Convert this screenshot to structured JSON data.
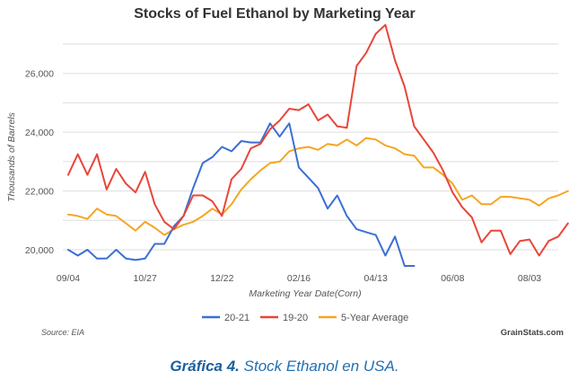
{
  "chart_data": {
    "type": "line",
    "title": "Stocks of Fuel Ethanol by Marketing Year",
    "xlabel": "Marketing Year Date(Corn)",
    "ylabel": "Thousands of Barrels",
    "ylim": [
      19300,
      27900
    ],
    "yticks": [
      20000,
      22000,
      24000,
      26000
    ],
    "ytick_labels": [
      "20,000",
      "22,000",
      "24,000",
      "26,000"
    ],
    "grid_values": [
      20000,
      21000,
      22000,
      23000,
      24000,
      25000,
      26000,
      27000
    ],
    "x_week_count": 53,
    "xticks": [
      {
        "week": 0,
        "label": "09/04"
      },
      {
        "week": 8,
        "label": "10/27"
      },
      {
        "week": 16,
        "label": "12/22"
      },
      {
        "week": 24,
        "label": "02/16"
      },
      {
        "week": 32,
        "label": "04/13"
      },
      {
        "week": 40,
        "label": "06/08"
      },
      {
        "week": 48,
        "label": "08/03"
      }
    ],
    "grid": true,
    "legend_position": "bottom",
    "series": [
      {
        "name": "20-21",
        "color": "#3b6fd4",
        "values": [
          20000,
          19800,
          20000,
          19700,
          19700,
          20000,
          19700,
          19650,
          19700,
          20200,
          20200,
          20800,
          21150,
          22100,
          22950,
          23150,
          23500,
          23350,
          23700,
          23650,
          23650,
          24300,
          23850,
          24300,
          22800,
          22450,
          22100,
          21400,
          21850,
          21150,
          20700,
          20600,
          20500,
          19800,
          20450,
          19450,
          19450
        ]
      },
      {
        "name": "19-20",
        "color": "#e8463a",
        "values": [
          22550,
          23250,
          22550,
          23250,
          22050,
          22750,
          22250,
          21950,
          22650,
          21550,
          20950,
          20700,
          21150,
          21850,
          21850,
          21650,
          21150,
          22400,
          22750,
          23450,
          23600,
          24100,
          24400,
          24800,
          24750,
          24950,
          24400,
          24600,
          24200,
          24150,
          26250,
          26700,
          27350,
          27650,
          26450,
          25550,
          24200,
          23750,
          23300,
          22700,
          21950,
          21450,
          21100,
          20250,
          20650,
          20650,
          19850,
          20300,
          20350,
          19800,
          20300,
          20450,
          20900
        ]
      },
      {
        "name": "5-Year Average",
        "color": "#f5a623",
        "values": [
          21200,
          21150,
          21050,
          21400,
          21200,
          21150,
          20900,
          20650,
          20950,
          20750,
          20500,
          20700,
          20850,
          20950,
          21150,
          21400,
          21200,
          21550,
          22050,
          22400,
          22700,
          22950,
          23000,
          23350,
          23450,
          23500,
          23400,
          23600,
          23550,
          23750,
          23550,
          23800,
          23750,
          23550,
          23450,
          23250,
          23200,
          22800,
          22800,
          22550,
          22250,
          21700,
          21850,
          21550,
          21550,
          21800,
          21800,
          21750,
          21700,
          21500,
          21750,
          21850,
          22000
        ]
      }
    ],
    "source": "Source: EIA",
    "brand": "GrainStats.com"
  },
  "caption": {
    "bold": "Gráfica 4.",
    "text": " Stock Ethanol en USA."
  }
}
